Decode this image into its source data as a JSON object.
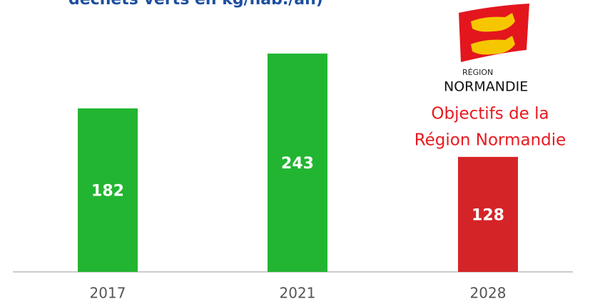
{
  "chart_data": {
    "type": "bar",
    "title": "déchets verts en kg/hab./an)",
    "categories": [
      "2017",
      "2021",
      "2028"
    ],
    "values": [
      182,
      243,
      128
    ],
    "colors": [
      "#22b532",
      "#22b532",
      "#d42427"
    ],
    "ylim": [
      0,
      300
    ],
    "annotation": [
      "Objectifs de la",
      "Région Normandie"
    ]
  },
  "logo": {
    "region": "RÉGION",
    "name": "NORMANDIE"
  }
}
